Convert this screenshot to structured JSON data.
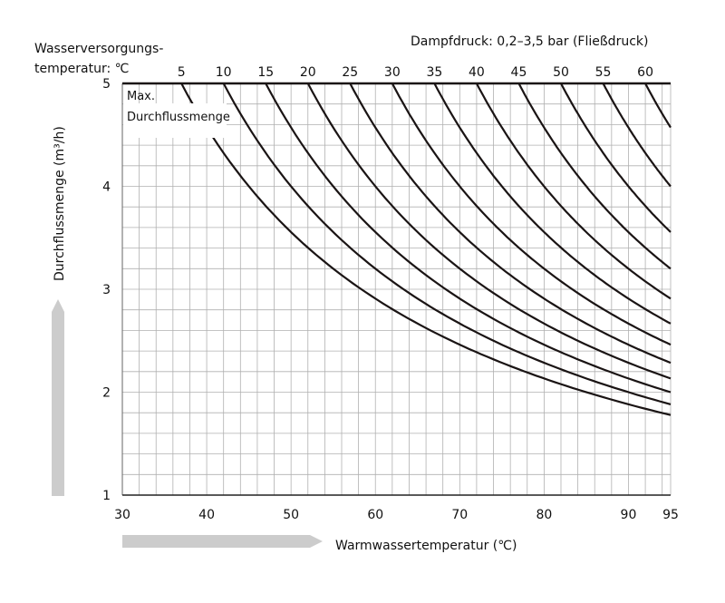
{
  "chart_data": {
    "type": "line",
    "title_left_line1": "Wasserversorgungs-",
    "title_left_line2": "temperatur: ℃",
    "title_right": "Dampfdruck: 0,2–3,5 bar (Fließdruck)",
    "xlabel": "Warmwassertemperatur (℃)",
    "ylabel": "Durchflussmenge (m³/h)",
    "annotation_line1": "Max.",
    "annotation_line2": "Durchflussmenge",
    "xlim": [
      30,
      95
    ],
    "ylim": [
      1,
      5
    ],
    "x_ticks": [
      "30",
      "40",
      "50",
      "60",
      "70",
      "80",
      "90",
      "95"
    ],
    "x_tick_values": [
      30,
      40,
      50,
      60,
      70,
      80,
      90,
      95
    ],
    "y_ticks": [
      "1",
      "2",
      "3",
      "4",
      "5"
    ],
    "y_tick_values": [
      1,
      2,
      3,
      4,
      5
    ],
    "grid": true,
    "grid_step_x": 2,
    "grid_step_y": 0.2,
    "curve_constant": 160,
    "curve_model": "flow = 160 / (hot_water_temp - supply_temp), capped at 5",
    "series": [
      {
        "name": "5",
        "supply_temp": 5
      },
      {
        "name": "10",
        "supply_temp": 10
      },
      {
        "name": "15",
        "supply_temp": 15
      },
      {
        "name": "20",
        "supply_temp": 20
      },
      {
        "name": "25",
        "supply_temp": 25
      },
      {
        "name": "30",
        "supply_temp": 30
      },
      {
        "name": "35",
        "supply_temp": 35
      },
      {
        "name": "40",
        "supply_temp": 40
      },
      {
        "name": "45",
        "supply_temp": 45
      },
      {
        "name": "50",
        "supply_temp": 50
      },
      {
        "name": "55",
        "supply_temp": 55
      },
      {
        "name": "60",
        "supply_temp": 60
      }
    ],
    "colors": {
      "curve": "#1a1414",
      "grid": "#b0b0b0",
      "arrow": "#cccccc"
    }
  }
}
